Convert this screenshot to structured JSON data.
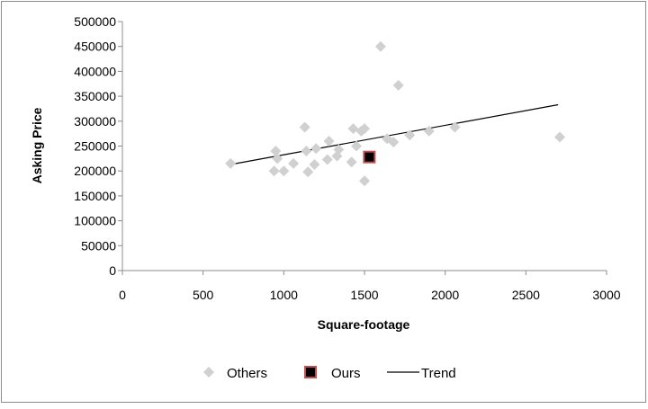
{
  "chart_data": {
    "type": "scatter",
    "xlabel": "Square-footage",
    "ylabel": "Asking Price",
    "xlim": [
      0,
      3000
    ],
    "ylim": [
      0,
      500000
    ],
    "x_ticks": [
      0,
      500,
      1000,
      1500,
      2000,
      2500,
      3000
    ],
    "y_ticks": [
      0,
      50000,
      100000,
      150000,
      200000,
      250000,
      300000,
      350000,
      400000,
      450000,
      500000
    ],
    "grid": "none",
    "legend_position": "bottom",
    "series": [
      {
        "name": "Others",
        "marker": "diamond",
        "color": "#d0d0d0",
        "points": [
          {
            "x": 670,
            "y": 215000
          },
          {
            "x": 940,
            "y": 200000
          },
          {
            "x": 950,
            "y": 240000
          },
          {
            "x": 960,
            "y": 225000
          },
          {
            "x": 1000,
            "y": 200000
          },
          {
            "x": 1060,
            "y": 215000
          },
          {
            "x": 1130,
            "y": 288000
          },
          {
            "x": 1140,
            "y": 240000
          },
          {
            "x": 1150,
            "y": 198000
          },
          {
            "x": 1190,
            "y": 213000
          },
          {
            "x": 1200,
            "y": 245000
          },
          {
            "x": 1270,
            "y": 223000
          },
          {
            "x": 1280,
            "y": 260000
          },
          {
            "x": 1330,
            "y": 230000
          },
          {
            "x": 1340,
            "y": 243000
          },
          {
            "x": 1420,
            "y": 218000
          },
          {
            "x": 1430,
            "y": 285000
          },
          {
            "x": 1450,
            "y": 250000
          },
          {
            "x": 1480,
            "y": 280000
          },
          {
            "x": 1500,
            "y": 285000
          },
          {
            "x": 1500,
            "y": 180000
          },
          {
            "x": 1600,
            "y": 450000
          },
          {
            "x": 1640,
            "y": 265000
          },
          {
            "x": 1680,
            "y": 258000
          },
          {
            "x": 1710,
            "y": 372000
          },
          {
            "x": 1780,
            "y": 272000
          },
          {
            "x": 1900,
            "y": 280000
          },
          {
            "x": 2060,
            "y": 288000
          },
          {
            "x": 2710,
            "y": 268000
          }
        ]
      },
      {
        "name": "Ours",
        "marker": "square",
        "color": "#000000",
        "edge_color": "#c0504d",
        "points": [
          {
            "x": 1530,
            "y": 228000
          }
        ]
      },
      {
        "name": "Trend",
        "type": "line",
        "color": "#000000",
        "points": [
          {
            "x": 670,
            "y": 213000
          },
          {
            "x": 2700,
            "y": 333000
          }
        ]
      }
    ]
  }
}
